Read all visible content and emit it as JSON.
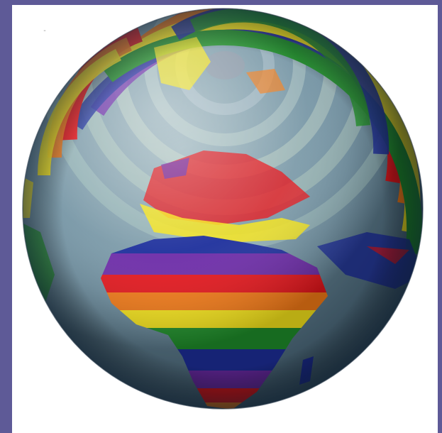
{
  "image": {
    "subject": "rainbow-globe",
    "background_color": "#5e5a97",
    "frame_color": "#ffffff",
    "ocean_color": "#6e8fa0",
    "rainbow_colors": [
      "#e5151b",
      "#f47a16",
      "#f7e51a",
      "#1f8f2a",
      "#1d2f9c",
      "#6c2aa8"
    ],
    "mark": "¨"
  }
}
